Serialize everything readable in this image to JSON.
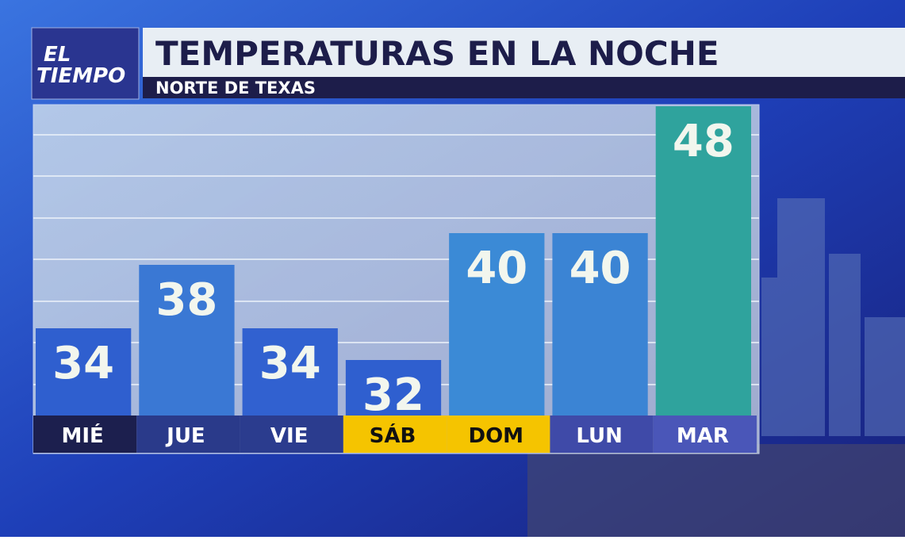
{
  "logo": [
    "EL",
    "TIEMPO"
  ],
  "chart_data": {
    "type": "bar",
    "title": "TEMPERATURAS EN LA NOCHE",
    "subtitle": "NORTE DE TEXAS",
    "categories": [
      "MIÉ",
      "JUE",
      "VIE",
      "SÁB",
      "DOM",
      "LUN",
      "MAR"
    ],
    "values": [
      34,
      38,
      34,
      32,
      40,
      40,
      48
    ],
    "colors": [
      "#2f5fcf",
      "#3a78d4",
      "#3161d0",
      "#2f5fcf",
      "#3b8ad6",
      "#3b84d4",
      "#2fa39d"
    ],
    "label_colors": [
      "#1c1f4e",
      "#2a3a8a",
      "#2b3c8e",
      "#f5c400",
      "#f5c400",
      "#3f4aa8",
      "#4a56b8"
    ],
    "ylim": [
      28.5,
      48
    ]
  }
}
